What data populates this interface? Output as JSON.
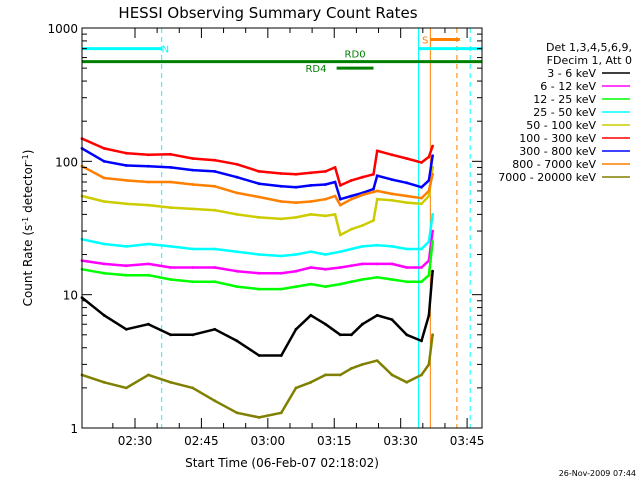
{
  "chart_data": {
    "type": "line",
    "title": "HESSI Observing Summary Count Rates",
    "xlabel": "Start Time (06-Feb-07 02:18:02)",
    "ylabel_main": "Count Rate (s",
    "ylabel_sup1": "-1",
    "ylabel_mid": " detector",
    "ylabel_sup2": "-1",
    "ylabel_end": ")",
    "yscale": "log",
    "ylim": [
      1,
      1000
    ],
    "xlim": [
      0,
      5420
    ],
    "x_unit": "seconds since 02:18:02",
    "x_ticks": [
      {
        "label": "02:30",
        "x": 718
      },
      {
        "label": "02:45",
        "x": 1618
      },
      {
        "label": "03:00",
        "x": 2518
      },
      {
        "label": "03:15",
        "x": 3418
      },
      {
        "label": "03:30",
        "x": 4318
      },
      {
        "label": "03:45",
        "x": 5218
      }
    ],
    "y_ticks": [
      {
        "label": "1",
        "y": 1
      },
      {
        "label": "10",
        "y": 10
      },
      {
        "label": "100",
        "y": 100
      },
      {
        "label": "1000",
        "y": 1000
      }
    ],
    "legend_header": [
      "Det 1,3,4,5,6,9,",
      "FDecim 1, Att 0"
    ],
    "legend_placement": "right",
    "timestamp": "26-Nov-2009 07:44",
    "annotations": {
      "night_label": "N",
      "saa_label": "S",
      "rd0_label": "RD0",
      "rd4_label": "RD4"
    },
    "bars": [
      {
        "kind": "night",
        "y": 700,
        "x0": 0,
        "x1": 1080,
        "color": "#00ffff"
      },
      {
        "kind": "saa",
        "y": 700,
        "x0": 4560,
        "x1": 5420,
        "color": "#00ffff"
      },
      {
        "kind": "rd0",
        "y": 560,
        "x0": 0,
        "x1": 5420,
        "color": "#008000"
      },
      {
        "kind": "rd4",
        "y": 500,
        "x0": 3450,
        "x1": 3950,
        "color": "#008000"
      },
      {
        "kind": "saa-orange",
        "y": 820,
        "x0": 4720,
        "x1": 5120,
        "color": "#ff7f00"
      }
    ],
    "vlines": [
      {
        "x": 1080,
        "color": "#00ffff",
        "dash": true
      },
      {
        "x": 4560,
        "color": "#00ffff",
        "dash": false
      },
      {
        "x": 5260,
        "color": "#00ffff",
        "dash": true
      },
      {
        "x": 5080,
        "color": "#ff7f00",
        "dash": true
      },
      {
        "x": 4720,
        "color": "#ff7f00",
        "dash": false
      }
    ],
    "series": [
      {
        "name": "3 - 6 keV",
        "color": "#000000",
        "points": [
          [
            0,
            9.5
          ],
          [
            300,
            7
          ],
          [
            600,
            5.5
          ],
          [
            900,
            6
          ],
          [
            1200,
            5
          ],
          [
            1500,
            5
          ],
          [
            1800,
            5.5
          ],
          [
            2100,
            4.5
          ],
          [
            2400,
            3.5
          ],
          [
            2700,
            3.5
          ],
          [
            2900,
            5.5
          ],
          [
            3100,
            7
          ],
          [
            3300,
            6
          ],
          [
            3500,
            5
          ],
          [
            3650,
            5
          ],
          [
            3800,
            6
          ],
          [
            4000,
            7
          ],
          [
            4200,
            6.5
          ],
          [
            4400,
            5
          ],
          [
            4600,
            4.5
          ],
          [
            4700,
            7
          ],
          [
            4750,
            15
          ]
        ]
      },
      {
        "name": "6 - 12 keV",
        "color": "#ff00ff",
        "points": [
          [
            0,
            18
          ],
          [
            300,
            17
          ],
          [
            600,
            16.5
          ],
          [
            900,
            17
          ],
          [
            1200,
            16
          ],
          [
            1500,
            16
          ],
          [
            1800,
            16
          ],
          [
            2100,
            15
          ],
          [
            2400,
            14.5
          ],
          [
            2700,
            14.5
          ],
          [
            2900,
            15
          ],
          [
            3100,
            16
          ],
          [
            3300,
            15.5
          ],
          [
            3500,
            16
          ],
          [
            3650,
            16.5
          ],
          [
            3800,
            17
          ],
          [
            4000,
            17
          ],
          [
            4200,
            17
          ],
          [
            4400,
            16
          ],
          [
            4600,
            16
          ],
          [
            4700,
            18
          ],
          [
            4750,
            30
          ]
        ]
      },
      {
        "name": "12 - 25 keV",
        "color": "#00ff00",
        "points": [
          [
            0,
            15.5
          ],
          [
            300,
            14.5
          ],
          [
            600,
            14
          ],
          [
            900,
            14
          ],
          [
            1200,
            13
          ],
          [
            1500,
            12.5
          ],
          [
            1800,
            12.5
          ],
          [
            2100,
            11.5
          ],
          [
            2400,
            11
          ],
          [
            2700,
            11
          ],
          [
            2900,
            11.5
          ],
          [
            3100,
            12
          ],
          [
            3300,
            11.5
          ],
          [
            3500,
            12
          ],
          [
            3650,
            12.5
          ],
          [
            3800,
            13
          ],
          [
            4000,
            13.5
          ],
          [
            4200,
            13
          ],
          [
            4400,
            12.5
          ],
          [
            4600,
            12.5
          ],
          [
            4700,
            14
          ],
          [
            4750,
            25
          ]
        ]
      },
      {
        "name": "25 - 50 keV",
        "color": "#00ffff",
        "points": [
          [
            0,
            26
          ],
          [
            300,
            24
          ],
          [
            600,
            23
          ],
          [
            900,
            24
          ],
          [
            1200,
            23
          ],
          [
            1500,
            22
          ],
          [
            1800,
            22
          ],
          [
            2100,
            21
          ],
          [
            2400,
            20
          ],
          [
            2700,
            19.5
          ],
          [
            2900,
            20
          ],
          [
            3100,
            21
          ],
          [
            3300,
            20
          ],
          [
            3500,
            21
          ],
          [
            3650,
            22
          ],
          [
            3800,
            23
          ],
          [
            4000,
            23.5
          ],
          [
            4200,
            23
          ],
          [
            4400,
            22
          ],
          [
            4600,
            22
          ],
          [
            4700,
            25
          ],
          [
            4750,
            40
          ]
        ]
      },
      {
        "name": "50 - 100 keV",
        "color": "#cccc00",
        "points": [
          [
            0,
            55
          ],
          [
            300,
            50
          ],
          [
            600,
            48
          ],
          [
            900,
            47
          ],
          [
            1200,
            45
          ],
          [
            1500,
            44
          ],
          [
            1800,
            43
          ],
          [
            2100,
            40
          ],
          [
            2400,
            38
          ],
          [
            2700,
            37
          ],
          [
            2900,
            38
          ],
          [
            3100,
            40
          ],
          [
            3300,
            39
          ],
          [
            3430,
            40
          ],
          [
            3500,
            28
          ],
          [
            3650,
            31
          ],
          [
            3800,
            33
          ],
          [
            3950,
            36
          ],
          [
            4000,
            52
          ],
          [
            4200,
            51
          ],
          [
            4400,
            49
          ],
          [
            4600,
            48
          ],
          [
            4700,
            55
          ],
          [
            4750,
            90
          ]
        ]
      },
      {
        "name": "100 - 300 keV",
        "color": "#ff0000",
        "points": [
          [
            0,
            148
          ],
          [
            300,
            125
          ],
          [
            600,
            115
          ],
          [
            900,
            112
          ],
          [
            1200,
            113
          ],
          [
            1500,
            105
          ],
          [
            1800,
            102
          ],
          [
            2100,
            95
          ],
          [
            2400,
            84
          ],
          [
            2700,
            81
          ],
          [
            2900,
            80
          ],
          [
            3100,
            82
          ],
          [
            3300,
            84
          ],
          [
            3430,
            90
          ],
          [
            3500,
            66
          ],
          [
            3650,
            72
          ],
          [
            3800,
            76
          ],
          [
            3950,
            80
          ],
          [
            4000,
            120
          ],
          [
            4200,
            112
          ],
          [
            4400,
            105
          ],
          [
            4600,
            98
          ],
          [
            4700,
            108
          ],
          [
            4750,
            130
          ]
        ]
      },
      {
        "name": "300 - 800 keV",
        "color": "#0000ff",
        "points": [
          [
            0,
            125
          ],
          [
            300,
            100
          ],
          [
            600,
            93
          ],
          [
            900,
            92
          ],
          [
            1200,
            90
          ],
          [
            1500,
            86
          ],
          [
            1800,
            84
          ],
          [
            2100,
            76
          ],
          [
            2400,
            68
          ],
          [
            2700,
            65
          ],
          [
            2900,
            64
          ],
          [
            3100,
            66
          ],
          [
            3300,
            67
          ],
          [
            3430,
            70
          ],
          [
            3500,
            52
          ],
          [
            3650,
            55
          ],
          [
            3800,
            58
          ],
          [
            3950,
            62
          ],
          [
            4000,
            78
          ],
          [
            4200,
            73
          ],
          [
            4400,
            69
          ],
          [
            4600,
            64
          ],
          [
            4700,
            72
          ],
          [
            4750,
            110
          ]
        ]
      },
      {
        "name": "800 - 7000 keV",
        "color": "#ff7f00",
        "points": [
          [
            0,
            92
          ],
          [
            300,
            75
          ],
          [
            600,
            72
          ],
          [
            900,
            70
          ],
          [
            1200,
            70
          ],
          [
            1500,
            67
          ],
          [
            1800,
            65
          ],
          [
            2100,
            58
          ],
          [
            2400,
            54
          ],
          [
            2700,
            50
          ],
          [
            2900,
            49
          ],
          [
            3100,
            50
          ],
          [
            3300,
            52
          ],
          [
            3430,
            55
          ],
          [
            3500,
            47
          ],
          [
            3650,
            52
          ],
          [
            3800,
            56
          ],
          [
            3950,
            59
          ],
          [
            4000,
            60
          ],
          [
            4200,
            57
          ],
          [
            4400,
            55
          ],
          [
            4600,
            53
          ],
          [
            4700,
            60
          ],
          [
            4750,
            80
          ]
        ]
      },
      {
        "name": "7000 - 20000 keV",
        "color": "#808000",
        "points": [
          [
            0,
            2.5
          ],
          [
            300,
            2.2
          ],
          [
            600,
            2.0
          ],
          [
            900,
            2.5
          ],
          [
            1200,
            2.2
          ],
          [
            1500,
            2.0
          ],
          [
            1800,
            1.6
          ],
          [
            2100,
            1.3
          ],
          [
            2400,
            1.2
          ],
          [
            2700,
            1.3
          ],
          [
            2900,
            2.0
          ],
          [
            3100,
            2.2
          ],
          [
            3300,
            2.5
          ],
          [
            3500,
            2.5
          ],
          [
            3650,
            2.8
          ],
          [
            3800,
            3.0
          ],
          [
            4000,
            3.2
          ],
          [
            4200,
            2.5
          ],
          [
            4400,
            2.2
          ],
          [
            4600,
            2.5
          ],
          [
            4700,
            3.0
          ],
          [
            4750,
            5
          ]
        ]
      }
    ]
  }
}
